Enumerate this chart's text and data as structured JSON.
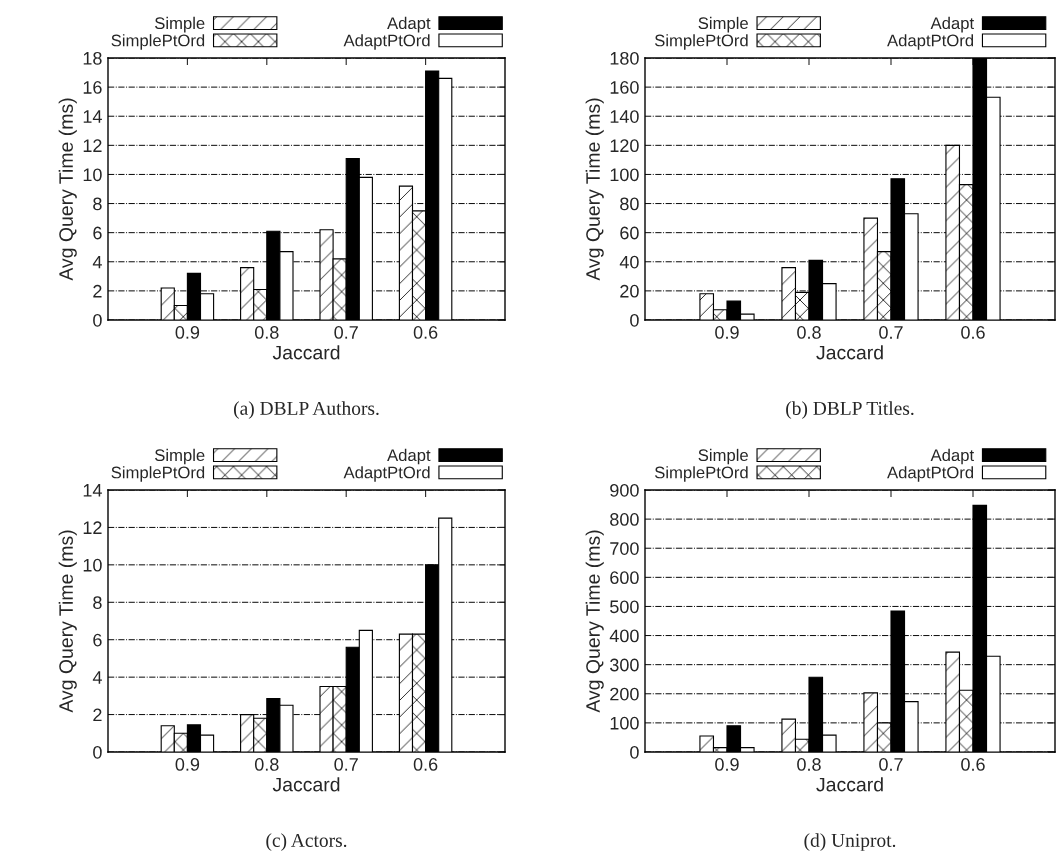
{
  "chart_data": [
    {
      "type": "bar",
      "xlabel": "Jaccard",
      "ylabel": "Avg Query Time (ms)",
      "categories": [
        "0.9",
        "0.8",
        "0.7",
        "0.6"
      ],
      "ylim": [
        0,
        18
      ],
      "yticks": [
        0,
        2,
        4,
        6,
        8,
        10,
        12,
        14,
        16,
        18
      ],
      "grid": "y",
      "legend": "top",
      "annotations": [
        "(a) DBLP Authors."
      ],
      "series": [
        {
          "name": "Simple",
          "color": "#ffffff",
          "values": [
            2.2,
            3.6,
            6.2,
            9.2
          ]
        },
        {
          "name": "SimplePtOrd",
          "color": "#ffffff",
          "values": [
            1.0,
            2.1,
            4.2,
            7.5
          ]
        },
        {
          "name": "Adapt",
          "color": "#000000",
          "values": [
            3.2,
            6.1,
            11.1,
            17.1
          ]
        },
        {
          "name": "AdaptPtOrd",
          "color": "#ffffff",
          "values": [
            1.8,
            4.7,
            9.8,
            16.6
          ]
        }
      ]
    },
    {
      "type": "bar",
      "xlabel": "Jaccard",
      "ylabel": "Avg Query Time (ms)",
      "categories": [
        "0.9",
        "0.8",
        "0.7",
        "0.6"
      ],
      "ylim": [
        0,
        180
      ],
      "yticks": [
        0,
        20,
        40,
        60,
        80,
        100,
        120,
        140,
        160,
        180
      ],
      "grid": "y",
      "legend": "top",
      "annotations": [
        "(b) DBLP Titles."
      ],
      "series": [
        {
          "name": "Simple",
          "color": "#ffffff",
          "values": [
            18,
            36,
            70,
            120
          ]
        },
        {
          "name": "SimplePtOrd",
          "color": "#ffffff",
          "values": [
            7,
            19,
            47,
            93
          ]
        },
        {
          "name": "Adapt",
          "color": "#000000",
          "values": [
            13,
            41,
            97,
            180
          ]
        },
        {
          "name": "AdaptPtOrd",
          "color": "#ffffff",
          "values": [
            4,
            25,
            73,
            153
          ]
        }
      ]
    },
    {
      "type": "bar",
      "xlabel": "Jaccard",
      "ylabel": "Avg Query Time (ms)",
      "categories": [
        "0.9",
        "0.8",
        "0.7",
        "0.6"
      ],
      "ylim": [
        0,
        14
      ],
      "yticks": [
        0,
        2,
        4,
        6,
        8,
        10,
        12,
        14
      ],
      "grid": "y",
      "legend": "top",
      "annotations": [
        "(c) Actors."
      ],
      "series": [
        {
          "name": "Simple",
          "color": "#ffffff",
          "values": [
            1.4,
            2.0,
            3.5,
            6.3
          ]
        },
        {
          "name": "SimplePtOrd",
          "color": "#ffffff",
          "values": [
            1.0,
            1.8,
            3.5,
            6.3
          ]
        },
        {
          "name": "Adapt",
          "color": "#000000",
          "values": [
            1.45,
            2.85,
            5.6,
            10.0
          ]
        },
        {
          "name": "AdaptPtOrd",
          "color": "#ffffff",
          "values": [
            0.9,
            2.5,
            6.5,
            12.5
          ]
        }
      ]
    },
    {
      "type": "bar",
      "xlabel": "Jaccard",
      "ylabel": "Avg Query Time (ms)",
      "categories": [
        "0.9",
        "0.8",
        "0.7",
        "0.6"
      ],
      "ylim": [
        0,
        900
      ],
      "yticks": [
        0,
        100,
        200,
        300,
        400,
        500,
        600,
        700,
        800,
        900
      ],
      "grid": "y",
      "legend": "top",
      "annotations": [
        "(d) Uniprot."
      ],
      "series": [
        {
          "name": "Simple",
          "color": "#ffffff",
          "values": [
            55,
            113,
            203,
            343
          ]
        },
        {
          "name": "SimplePtOrd",
          "color": "#ffffff",
          "values": [
            15,
            44,
            100,
            212
          ]
        },
        {
          "name": "Adapt",
          "color": "#000000",
          "values": [
            90,
            257,
            484,
            847
          ]
        },
        {
          "name": "AdaptPtOrd",
          "color": "#ffffff",
          "values": [
            15,
            58,
            173,
            329
          ]
        }
      ]
    }
  ]
}
